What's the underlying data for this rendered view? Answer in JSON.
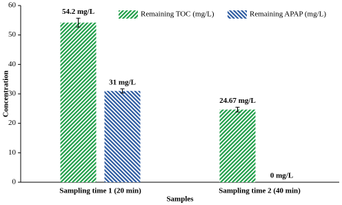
{
  "chart_data": {
    "type": "bar",
    "categories": [
      "Sampling time 1 (20 min)",
      "Sampling time 2 (40 min)"
    ],
    "series": [
      {
        "name": "Remaining TOC (mg/L)",
        "color": "#1f9e48",
        "values": [
          54.2,
          24.67
        ],
        "errors": [
          1.5,
          0.8
        ],
        "value_labels": [
          "54.2 mg/L",
          "24.67 mg/L"
        ]
      },
      {
        "name": "Remaining APAP (mg/L)",
        "color": "#2c5aa0",
        "values": [
          31,
          0
        ],
        "errors": [
          0.7,
          null
        ],
        "value_labels": [
          "31 mg/L",
          "0 mg/L"
        ]
      }
    ],
    "x_label": "Samples",
    "y_label": "Concentration",
    "ylim": [
      0,
      60
    ],
    "yticks": [
      0,
      10,
      20,
      30,
      40,
      50,
      60
    ],
    "grid": false
  }
}
